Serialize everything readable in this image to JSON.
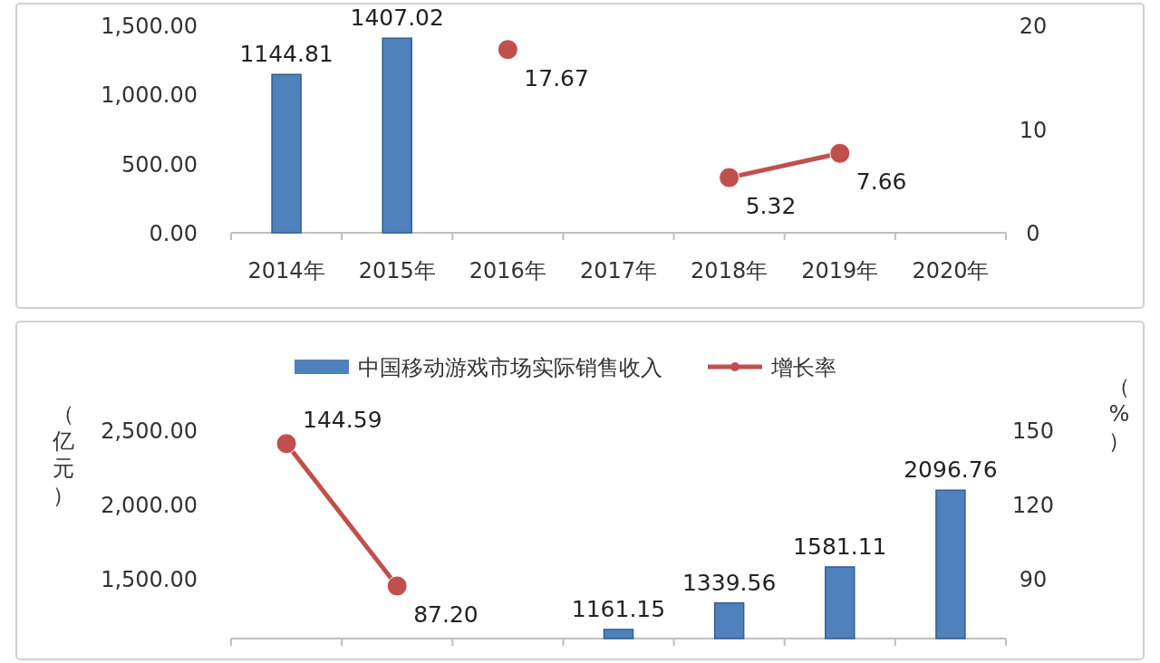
{
  "chart_data": [
    {
      "type": "bar",
      "categories": [
        "2014年",
        "2015年",
        "2016年",
        "2017年",
        "2018年",
        "2019年",
        "2020年"
      ],
      "series": [
        {
          "color": "#4f81bd",
          "values": [
            1144.81,
            1407.02,
            null,
            null,
            null,
            null,
            null
          ]
        },
        {
          "type": "line",
          "axis": "y2",
          "color": "#c0504d",
          "values": [
            null,
            null,
            17.67,
            null,
            5.32,
            7.66,
            null
          ]
        }
      ],
      "ylim": [
        0,
        1500
      ],
      "yticks": [
        {
          "value": 0,
          "label": "0.00"
        },
        {
          "value": 500,
          "label": "500.00"
        },
        {
          "value": 1000,
          "label": "1,000.00"
        },
        {
          "value": 1500,
          "label": "1,500.00"
        }
      ],
      "y2lim": [
        0,
        20
      ],
      "y2ticks": [
        0,
        10,
        20
      ],
      "marker": "circle",
      "data_labels": true,
      "grid": false,
      "legend": false
    },
    {
      "type": "bar",
      "categories": [
        null,
        null,
        null,
        null,
        null,
        null,
        null
      ],
      "ylabel": "（亿元）",
      "y2label": "（%）",
      "series": [
        {
          "name": "中国移动游戏市场实际销售收入",
          "color": "#4f81bd",
          "values": [
            null,
            null,
            null,
            1161.15,
            1339.56,
            1581.11,
            2096.76
          ]
        },
        {
          "type": "line",
          "axis": "y2",
          "name": "增长率",
          "color": "#c0504d",
          "values": [
            144.59,
            87.2,
            null,
            null,
            null,
            null,
            null
          ],
          "value_labels": [
            "144.59",
            "87.20",
            null,
            null,
            null,
            null,
            null
          ]
        }
      ],
      "ylim": [
        1100,
        2500
      ],
      "yticks": [
        {
          "value": 1500,
          "label": "1,500.00"
        },
        {
          "value": 2000,
          "label": "2,000.00"
        },
        {
          "value": 2500,
          "label": "2,500.00"
        }
      ],
      "y2lim": [
        66,
        150
      ],
      "y2ticks": [
        90,
        120,
        150
      ],
      "marker": "circle",
      "data_labels": true,
      "grid": false,
      "legend": "top"
    }
  ]
}
